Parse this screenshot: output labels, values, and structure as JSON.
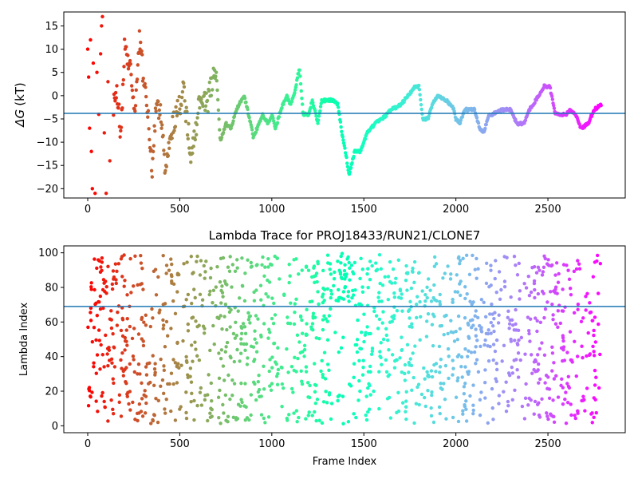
{
  "chart_data": [
    {
      "type": "scatter",
      "title": "",
      "xlabel": "",
      "ylabel_symbol": "ΔG",
      "ylabel_unit": "(kT)",
      "xlim": [
        -130,
        2920
      ],
      "ylim": [
        -22,
        18
      ],
      "xticks": [
        0,
        500,
        1000,
        1500,
        2000,
        2500
      ],
      "yticks": [
        -20,
        -15,
        -10,
        -5,
        0,
        5,
        10,
        15
      ],
      "hline": -3.8,
      "hline_color": "#1f77b4",
      "colormap": "rainbow (red at frame 0 to violet at last frame)",
      "n_frames": 2790,
      "series": [
        {
          "keypoints": [
            [
              0,
              10
            ],
            [
              5,
              4
            ],
            [
              10,
              -7
            ],
            [
              15,
              12
            ],
            [
              20,
              -12
            ],
            [
              25,
              -20
            ],
            [
              30,
              7
            ],
            [
              40,
              -21
            ],
            [
              50,
              5
            ],
            [
              60,
              -4
            ],
            [
              70,
              9
            ],
            [
              75,
              15
            ],
            [
              80,
              17
            ],
            [
              90,
              -8
            ],
            [
              100,
              -21
            ],
            [
              110,
              3
            ],
            [
              120,
              -14
            ],
            [
              140,
              -2
            ],
            [
              160,
              1
            ],
            [
              180,
              -9
            ],
            [
              200,
              10
            ],
            [
              230,
              6
            ],
            [
              250,
              -3
            ],
            [
              270,
              2
            ],
            [
              280,
              13
            ],
            [
              300,
              5
            ],
            [
              330,
              -6
            ],
            [
              350,
              -16
            ],
            [
              370,
              -2
            ],
            [
              400,
              -4
            ],
            [
              420,
              -17
            ],
            [
              440,
              -10
            ],
            [
              480,
              -4
            ],
            [
              500,
              -2
            ],
            [
              520,
              2
            ],
            [
              540,
              -6
            ],
            [
              560,
              -12
            ],
            [
              580,
              -9
            ],
            [
              600,
              -3
            ],
            [
              620,
              0
            ],
            [
              650,
              -2
            ],
            [
              680,
              4
            ],
            [
              700,
              4
            ],
            [
              720,
              -10
            ],
            [
              750,
              -6
            ],
            [
              780,
              -7
            ],
            [
              800,
              -4
            ],
            [
              820,
              -2
            ],
            [
              850,
              0
            ],
            [
              880,
              -5
            ],
            [
              900,
              -9
            ],
            [
              920,
              -7
            ],
            [
              950,
              -4
            ],
            [
              980,
              -6
            ],
            [
              1000,
              -4
            ],
            [
              1020,
              -7
            ],
            [
              1050,
              -3
            ],
            [
              1080,
              0
            ],
            [
              1100,
              -2
            ],
            [
              1120,
              0
            ],
            [
              1140,
              4
            ],
            [
              1150,
              6
            ],
            [
              1170,
              -4
            ],
            [
              1200,
              -4
            ],
            [
              1220,
              -1
            ],
            [
              1250,
              -6
            ],
            [
              1270,
              -1
            ],
            [
              1300,
              -1
            ],
            [
              1330,
              -1
            ],
            [
              1360,
              -2
            ],
            [
              1380,
              -8
            ],
            [
              1400,
              -12
            ],
            [
              1420,
              -17
            ],
            [
              1450,
              -12
            ],
            [
              1480,
              -12
            ],
            [
              1520,
              -8
            ],
            [
              1560,
              -6
            ],
            [
              1600,
              -5
            ],
            [
              1650,
              -3
            ],
            [
              1700,
              -2
            ],
            [
              1740,
              0
            ],
            [
              1780,
              2
            ],
            [
              1800,
              2
            ],
            [
              1820,
              -5
            ],
            [
              1850,
              -5
            ],
            [
              1870,
              -2
            ],
            [
              1900,
              0
            ],
            [
              1950,
              -1
            ],
            [
              1990,
              -3
            ],
            [
              2000,
              -5
            ],
            [
              2020,
              -6
            ],
            [
              2050,
              -3
            ],
            [
              2100,
              -3
            ],
            [
              2130,
              -7
            ],
            [
              2150,
              -8
            ],
            [
              2180,
              -4
            ],
            [
              2200,
              -4
            ],
            [
              2250,
              -3
            ],
            [
              2300,
              -3
            ],
            [
              2330,
              -6
            ],
            [
              2370,
              -6
            ],
            [
              2400,
              -3
            ],
            [
              2450,
              0
            ],
            [
              2480,
              2
            ],
            [
              2510,
              2
            ],
            [
              2540,
              -4
            ],
            [
              2600,
              -4
            ],
            [
              2620,
              -3
            ],
            [
              2650,
              -4
            ],
            [
              2680,
              -7
            ],
            [
              2720,
              -6
            ],
            [
              2750,
              -3
            ],
            [
              2790,
              -2
            ]
          ]
        }
      ]
    },
    {
      "type": "scatter",
      "title": "Lambda Trace for PROJ18433/RUN21/CLONE7",
      "xlabel": "Frame Index",
      "ylabel": "Lambda Index",
      "xlim": [
        -130,
        2920
      ],
      "ylim": [
        -4,
        104
      ],
      "xticks": [
        0,
        500,
        1000,
        1500,
        2000,
        2500
      ],
      "yticks": [
        0,
        20,
        40,
        60,
        80,
        100
      ],
      "hline": 69,
      "hline_color": "#1f77b4",
      "colormap": "rainbow (red at frame 0 to violet at last frame)",
      "n_frames": 2790,
      "point_count": 1400
    }
  ]
}
